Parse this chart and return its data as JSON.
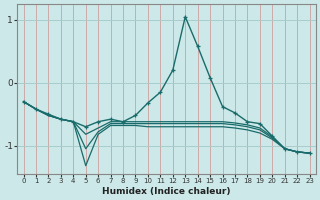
{
  "xlabel": "Humidex (Indice chaleur)",
  "ylabel": "",
  "bg_color": "#cce8e8",
  "grid_color": "#aacccc",
  "line_color": "#1a6b6b",
  "xlim": [
    -0.5,
    23.5
  ],
  "ylim": [
    -1.45,
    1.25
  ],
  "yticks": [
    -1,
    0,
    1
  ],
  "xticks": [
    0,
    1,
    2,
    3,
    4,
    5,
    6,
    7,
    8,
    9,
    10,
    11,
    12,
    13,
    14,
    15,
    16,
    17,
    18,
    19,
    20,
    21,
    22,
    23
  ],
  "series": [
    {
      "x": [
        0,
        1,
        2,
        3,
        4,
        5,
        6,
        7,
        8,
        9,
        10,
        11,
        12,
        13,
        14,
        15,
        16,
        17,
        18,
        19,
        20,
        21,
        22,
        23
      ],
      "y": [
        -0.3,
        -0.42,
        -0.5,
        -0.58,
        -0.62,
        -0.7,
        -0.62,
        -0.58,
        -0.62,
        -0.52,
        -0.32,
        -0.15,
        0.2,
        1.05,
        0.58,
        0.08,
        -0.38,
        -0.48,
        -0.62,
        -0.65,
        -0.85,
        -1.05,
        -1.1,
        -1.12
      ],
      "marker": "+",
      "lw": 1.0
    },
    {
      "x": [
        0,
        1,
        2,
        3,
        4,
        5,
        6,
        7,
        8,
        9,
        10,
        11,
        12,
        13,
        14,
        15,
        16,
        17,
        18,
        19,
        20,
        21,
        22,
        23
      ],
      "y": [
        -0.3,
        -0.42,
        -0.52,
        -0.58,
        -0.62,
        -1.32,
        -0.82,
        -0.68,
        -0.68,
        -0.68,
        -0.7,
        -0.7,
        -0.7,
        -0.7,
        -0.7,
        -0.7,
        -0.7,
        -0.72,
        -0.75,
        -0.8,
        -0.9,
        -1.05,
        -1.1,
        -1.12
      ],
      "marker": null,
      "lw": 0.9
    },
    {
      "x": [
        0,
        1,
        2,
        3,
        4,
        5,
        6,
        7,
        8,
        9,
        10,
        11,
        12,
        13,
        14,
        15,
        16,
        17,
        18,
        19,
        20,
        21,
        22,
        23
      ],
      "y": [
        -0.3,
        -0.42,
        -0.52,
        -0.58,
        -0.62,
        -1.05,
        -0.78,
        -0.65,
        -0.65,
        -0.65,
        -0.65,
        -0.65,
        -0.65,
        -0.65,
        -0.65,
        -0.65,
        -0.65,
        -0.67,
        -0.7,
        -0.75,
        -0.88,
        -1.05,
        -1.1,
        -1.12
      ],
      "marker": null,
      "lw": 0.9
    },
    {
      "x": [
        0,
        1,
        2,
        3,
        4,
        5,
        6,
        7,
        8,
        9,
        10,
        11,
        12,
        13,
        14,
        15,
        16,
        17,
        18,
        19,
        20,
        21,
        22,
        23
      ],
      "y": [
        -0.3,
        -0.42,
        -0.52,
        -0.58,
        -0.62,
        -0.82,
        -0.72,
        -0.62,
        -0.62,
        -0.62,
        -0.62,
        -0.62,
        -0.62,
        -0.62,
        -0.62,
        -0.62,
        -0.62,
        -0.64,
        -0.67,
        -0.72,
        -0.86,
        -1.05,
        -1.1,
        -1.12
      ],
      "marker": null,
      "lw": 0.9
    }
  ]
}
